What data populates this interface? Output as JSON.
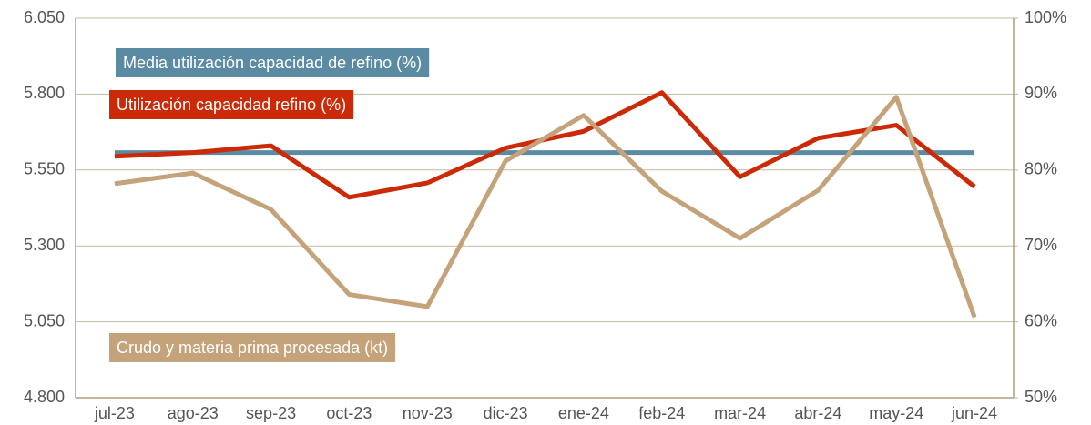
{
  "chart_data": {
    "type": "line",
    "categories": [
      "jul-23",
      "ago-23",
      "sep-23",
      "oct-23",
      "nov-23",
      "dic-23",
      "ene-24",
      "feb-24",
      "mar-24",
      "abr-24",
      "may-24",
      "jun-24"
    ],
    "series": [
      {
        "name": "Media utilización capacidad de refino (%)",
        "color": "#5b8aa3",
        "axis": "y2",
        "values": [
          82.3,
          82.3,
          82.3,
          82.3,
          82.3,
          82.3,
          82.3,
          82.3,
          82.3,
          82.3,
          82.3,
          82.3
        ]
      },
      {
        "name": "Utilización capacidad refino (%)",
        "color": "#cc2a06",
        "axis": "y2",
        "values": [
          81.8,
          82.3,
          83.2,
          76.4,
          78.3,
          82.9,
          85.1,
          90.2,
          79.1,
          84.2,
          85.9,
          77.8
        ]
      },
      {
        "name": "Crudo y materia prima procesada (kt)",
        "color": "#c4a27a",
        "values": [
          5505,
          5540,
          5420,
          5140,
          5100,
          5580,
          5730,
          5480,
          5325,
          5483,
          5790,
          5065
        ]
      }
    ],
    "ylim": [
      4800,
      6050
    ],
    "yticks": [
      {
        "value": 4800,
        "label": "4.800"
      },
      {
        "value": 5050,
        "label": "5.050"
      },
      {
        "value": 5300,
        "label": "5.300"
      },
      {
        "value": 5550,
        "label": "5.550"
      },
      {
        "value": 5800,
        "label": "5.800"
      },
      {
        "value": 6050,
        "label": "6.050"
      }
    ],
    "y2lim": [
      50,
      100
    ],
    "y2ticks": [
      {
        "value": 50,
        "label": "50%"
      },
      {
        "value": 60,
        "label": "60%"
      },
      {
        "value": 70,
        "label": "70%"
      },
      {
        "value": 80,
        "label": "80%"
      },
      {
        "value": 90,
        "label": "90%"
      },
      {
        "value": 100,
        "label": "100%"
      }
    ],
    "grid": true
  }
}
